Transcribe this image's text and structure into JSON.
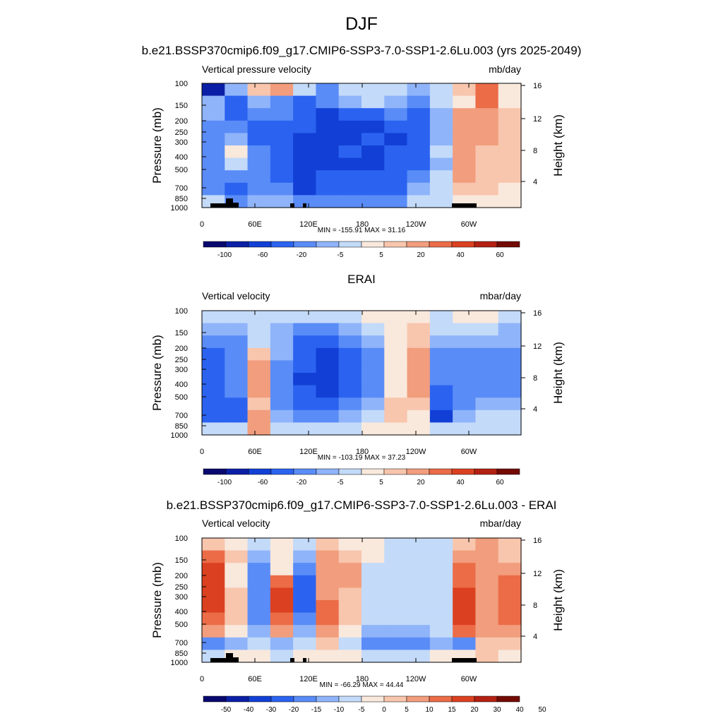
{
  "page": {
    "title": "DJF"
  },
  "palettes": {
    "abs": [
      "#08086e",
      "#0b1fa6",
      "#1240d6",
      "#2b63f0",
      "#5a8cf7",
      "#8fb4fa",
      "#c3daf9",
      "#f9e8dc",
      "#f8c5ad",
      "#f29d7d",
      "#eb6c47",
      "#db4120",
      "#b32112",
      "#730a04"
    ],
    "diff": [
      "#08086e",
      "#0b1fa6",
      "#1240d6",
      "#2b63f0",
      "#5a8cf7",
      "#8fb4fa",
      "#c3daf9",
      "#f9e8dc",
      "#f8c5ad",
      "#f29d7d",
      "#eb6c47",
      "#db4120",
      "#b32112",
      "#730a04"
    ]
  },
  "chart_data": [
    {
      "type": "heatmap",
      "title": "b.e21.BSSP370cmip6.f09_g17.CMIP6-SSP3-7.0-SSP1-2.6Lu.003 (yrs 2025-2049)",
      "left_label": "Vertical pressure velocity",
      "right_label": "mb/day",
      "ylabel": "Pressure (mb)",
      "ylabel_right": "Height (km)",
      "xticks": [
        "0",
        "60E",
        "120E",
        "180",
        "120W",
        "60W"
      ],
      "yticks": [
        "100",
        "150",
        "200",
        "250",
        "300",
        "400",
        "500",
        "700",
        "850",
        "1000"
      ],
      "yticks_right": [
        "16",
        "12",
        "8",
        "4"
      ],
      "stats": "MIN = -155.91  MAX =  31.16",
      "colorbar_labels": [
        "-100",
        "-60",
        "-20",
        "-5",
        "5",
        "20",
        "40",
        "60"
      ],
      "palette": "abs",
      "has_topography": true,
      "field": [
        [
          0.5,
          5,
          8,
          9,
          6,
          4,
          6,
          6,
          6,
          5,
          6,
          8,
          10,
          7
        ],
        [
          5,
          3,
          5,
          4,
          3,
          4,
          5,
          6,
          5,
          4,
          6,
          7,
          10,
          7
        ],
        [
          5,
          3,
          4,
          4,
          3,
          2,
          3,
          3,
          4,
          3,
          5,
          9,
          9,
          8
        ],
        [
          4,
          4,
          3,
          3,
          3,
          2,
          2,
          2,
          3,
          3,
          5,
          9,
          9,
          8
        ],
        [
          4,
          5,
          3,
          3,
          2,
          2,
          2,
          3,
          2,
          3,
          5,
          9,
          9,
          8
        ],
        [
          4,
          7,
          4,
          3,
          2,
          2,
          3,
          2,
          3,
          3,
          6,
          9,
          8,
          8
        ],
        [
          4,
          6,
          4,
          3,
          2,
          2,
          2,
          2,
          3,
          3,
          5,
          9,
          8,
          8
        ],
        [
          4,
          4,
          4,
          3,
          2,
          3,
          3,
          3,
          3,
          4,
          6,
          9,
          8,
          8
        ],
        [
          4,
          3,
          4,
          4,
          2,
          3,
          3,
          3,
          3,
          5,
          6,
          8,
          8,
          7
        ],
        [
          6,
          4,
          5,
          5,
          4,
          4,
          4,
          4,
          4,
          6,
          6,
          7,
          7,
          7
        ]
      ]
    },
    {
      "type": "heatmap",
      "title": "ERAI",
      "left_label": "Vertical velocity",
      "right_label": "mbar/day",
      "ylabel": "Pressure (mb)",
      "ylabel_right": "Height (km)",
      "xticks": [
        "0",
        "60E",
        "120E",
        "180",
        "120W",
        "60W"
      ],
      "yticks": [
        "100",
        "150",
        "200",
        "250",
        "300",
        "400",
        "500",
        "700",
        "850",
        "1000"
      ],
      "yticks_right": [
        "16",
        "12",
        "8",
        "4"
      ],
      "stats": "MIN = -103.19  MAX =  37.23",
      "colorbar_labels": [
        "-100",
        "-60",
        "-20",
        "-5",
        "5",
        "20",
        "40",
        "60"
      ],
      "palette": "abs",
      "has_topography": false,
      "field": [
        [
          6,
          6,
          6,
          6,
          6,
          6,
          6,
          7,
          7,
          7,
          6,
          7,
          7,
          6
        ],
        [
          5,
          5,
          6,
          5,
          4,
          4,
          5,
          6,
          7,
          8,
          6,
          6,
          6,
          5
        ],
        [
          4,
          4,
          6,
          5,
          3,
          3,
          4,
          5,
          7,
          8,
          5,
          5,
          5,
          5
        ],
        [
          3,
          4,
          8,
          5,
          3,
          2,
          3,
          4,
          7,
          9,
          4,
          4,
          4,
          4
        ],
        [
          3,
          4,
          9,
          4,
          3,
          2,
          3,
          4,
          7,
          9,
          4,
          4,
          4,
          4
        ],
        [
          3,
          4,
          9,
          4,
          2,
          2,
          3,
          4,
          7,
          9,
          4,
          4,
          4,
          4
        ],
        [
          3,
          4,
          9,
          4,
          3,
          2,
          3,
          4,
          7,
          9,
          3,
          4,
          4,
          4
        ],
        [
          3,
          3,
          8,
          4,
          3,
          3,
          4,
          5,
          8,
          8,
          3,
          4,
          5,
          5
        ],
        [
          3,
          3,
          9,
          5,
          4,
          4,
          5,
          6,
          8,
          7,
          2,
          5,
          6,
          6
        ],
        [
          6,
          6,
          9,
          6,
          6,
          6,
          6,
          7,
          7,
          7,
          6,
          6,
          6,
          6
        ]
      ]
    },
    {
      "type": "heatmap",
      "title": "b.e21.BSSP370cmip6.f09_g17.CMIP6-SSP3-7.0-SSP1-2.6Lu.003 - ERAI",
      "left_label": "Vertical velocity",
      "right_label": "mbar/day",
      "ylabel": "Pressure (mb)",
      "ylabel_right": "Height (km)",
      "xticks": [
        "0",
        "60E",
        "120E",
        "180",
        "120W",
        "60W"
      ],
      "yticks": [
        "100",
        "150",
        "200",
        "250",
        "300",
        "400",
        "500",
        "700",
        "850",
        "1000"
      ],
      "yticks_right": [
        "16",
        "12",
        "8",
        "4"
      ],
      "stats": "MIN = -66.29  MAX = 44.44",
      "colorbar_labels": [
        "-50",
        "-40",
        "-30",
        "-20",
        "-15",
        "-10",
        "-5",
        "0",
        "5",
        "10",
        "15",
        "20",
        "30",
        "40",
        "50"
      ],
      "palette": "diff",
      "has_topography": true,
      "field": [
        [
          8,
          7,
          6,
          7,
          6,
          8,
          7,
          7,
          6,
          6,
          6,
          8,
          9,
          8
        ],
        [
          10,
          8,
          5,
          7,
          5,
          9,
          8,
          7,
          6,
          6,
          6,
          9,
          9,
          8
        ],
        [
          11,
          7,
          4,
          7,
          4,
          9,
          9,
          6,
          6,
          6,
          6,
          10,
          9,
          9
        ],
        [
          11,
          7,
          4,
          10,
          3,
          9,
          9,
          6,
          6,
          6,
          6,
          10,
          9,
          10
        ],
        [
          11,
          8,
          4,
          11,
          3,
          9,
          8,
          6,
          6,
          6,
          6,
          11,
          9,
          10
        ],
        [
          11,
          8,
          4,
          11,
          3,
          10,
          8,
          6,
          6,
          6,
          6,
          11,
          9,
          10
        ],
        [
          10,
          8,
          4,
          10,
          4,
          10,
          8,
          6,
          6,
          6,
          6,
          11,
          9,
          10
        ],
        [
          9,
          7,
          5,
          9,
          5,
          9,
          7,
          5,
          5,
          5,
          6,
          10,
          9,
          9
        ],
        [
          4,
          5,
          6,
          5,
          6,
          8,
          6,
          4,
          4,
          4,
          5,
          4,
          8,
          8
        ],
        [
          6,
          7,
          7,
          6,
          7,
          7,
          7,
          6,
          6,
          6,
          7,
          7,
          8,
          7
        ]
      ]
    }
  ]
}
